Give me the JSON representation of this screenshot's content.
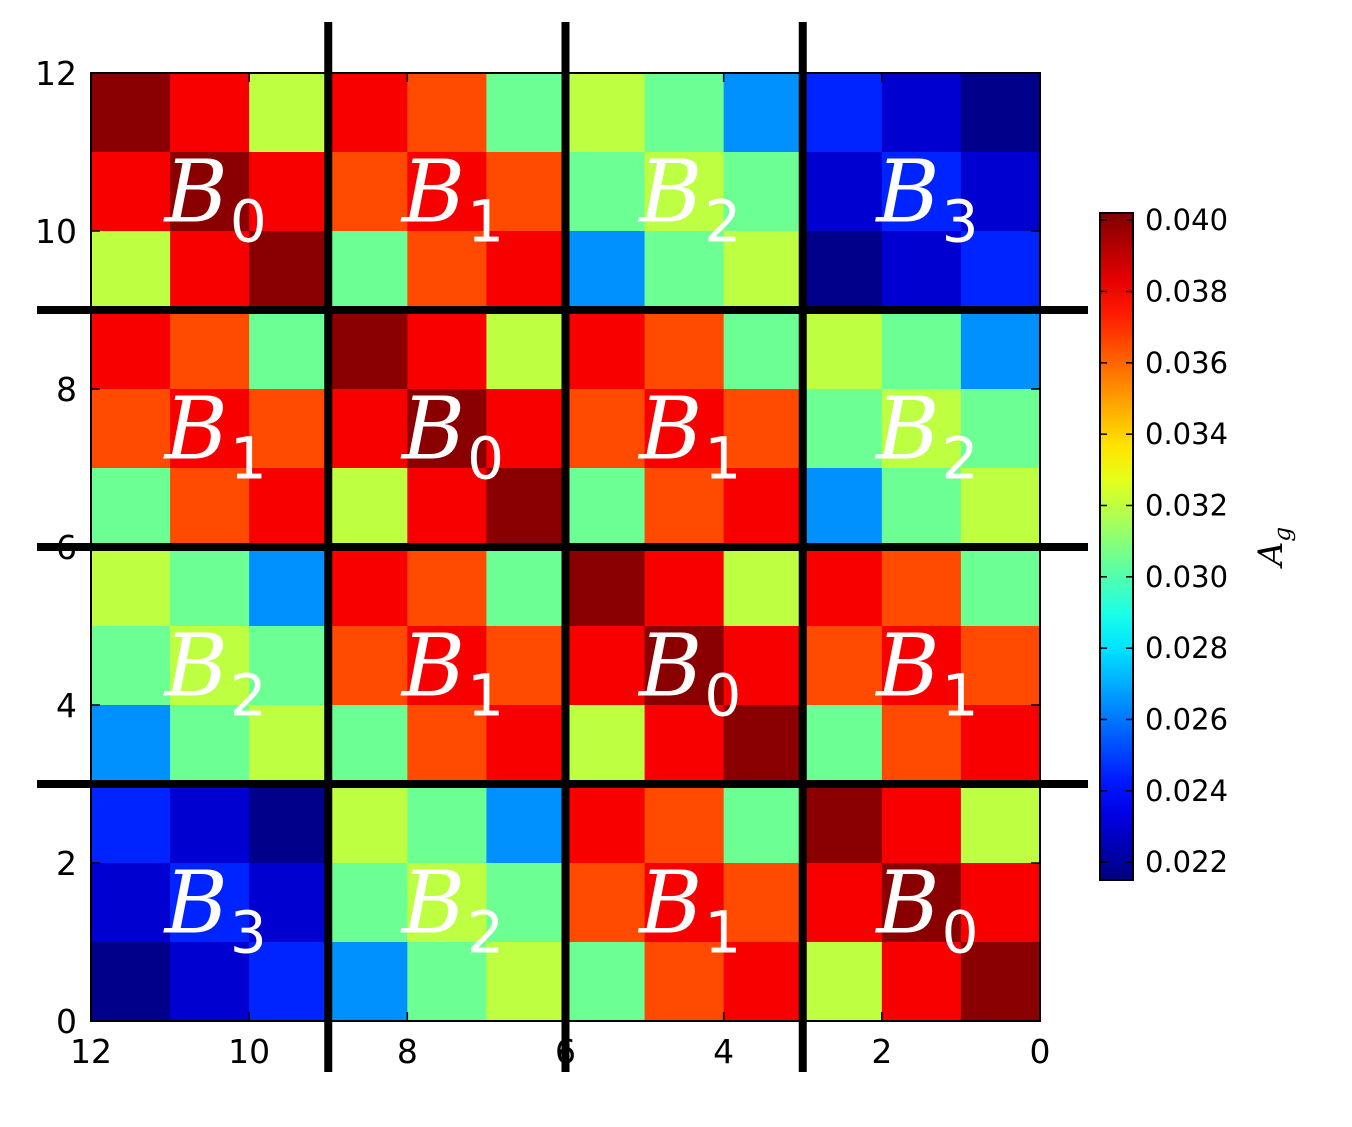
{
  "chart_data": {
    "type": "heatmap",
    "title": "",
    "xlabel": "",
    "ylabel": "",
    "xlim": [
      12,
      0
    ],
    "ylim": [
      0,
      12
    ],
    "x_ticks": [
      "12",
      "10",
      "8",
      "6",
      "4",
      "2",
      "0"
    ],
    "y_ticks": [
      "0",
      "2",
      "4",
      "6",
      "8",
      "10",
      "12"
    ],
    "colormap": "jet",
    "colorbar": {
      "label_main": "A",
      "label_sub": "g",
      "range": [
        0.0215,
        0.0402
      ],
      "ticks": [
        "0.022",
        "0.024",
        "0.026",
        "0.028",
        "0.030",
        "0.032",
        "0.034",
        "0.036",
        "0.038",
        "0.040"
      ]
    },
    "cell_values_top_to_bottom": [
      [
        0.04,
        0.038,
        0.032,
        0.038,
        0.0365,
        0.0305,
        0.032,
        0.0305,
        0.0265,
        0.0245,
        0.023,
        0.0217
      ],
      [
        0.038,
        0.04,
        0.038,
        0.0365,
        0.038,
        0.0365,
        0.0305,
        0.032,
        0.0305,
        0.023,
        0.0245,
        0.023
      ],
      [
        0.032,
        0.038,
        0.04,
        0.0305,
        0.0365,
        0.038,
        0.0265,
        0.0305,
        0.032,
        0.0217,
        0.023,
        0.0245
      ],
      [
        0.038,
        0.0365,
        0.0305,
        0.04,
        0.038,
        0.032,
        0.038,
        0.0365,
        0.0305,
        0.032,
        0.0305,
        0.0265
      ],
      [
        0.0365,
        0.038,
        0.0365,
        0.038,
        0.04,
        0.038,
        0.0365,
        0.038,
        0.0365,
        0.0305,
        0.032,
        0.0305
      ],
      [
        0.0305,
        0.0365,
        0.038,
        0.032,
        0.038,
        0.04,
        0.0305,
        0.0365,
        0.038,
        0.0265,
        0.0305,
        0.032
      ],
      [
        0.032,
        0.0305,
        0.0265,
        0.038,
        0.0365,
        0.0305,
        0.04,
        0.038,
        0.032,
        0.038,
        0.0365,
        0.0305
      ],
      [
        0.0305,
        0.032,
        0.0305,
        0.0365,
        0.038,
        0.0365,
        0.038,
        0.04,
        0.038,
        0.0365,
        0.038,
        0.0365
      ],
      [
        0.0265,
        0.0305,
        0.032,
        0.0305,
        0.0365,
        0.038,
        0.032,
        0.038,
        0.04,
        0.0305,
        0.0365,
        0.038
      ],
      [
        0.0245,
        0.023,
        0.0217,
        0.032,
        0.0305,
        0.0265,
        0.038,
        0.0365,
        0.0305,
        0.04,
        0.038,
        0.032
      ],
      [
        0.023,
        0.0245,
        0.023,
        0.0305,
        0.032,
        0.0305,
        0.0365,
        0.038,
        0.0365,
        0.038,
        0.04,
        0.038
      ],
      [
        0.0217,
        0.023,
        0.0245,
        0.0265,
        0.0305,
        0.032,
        0.0305,
        0.0365,
        0.038,
        0.032,
        0.038,
        0.04
      ]
    ],
    "block_labels_top_to_bottom": [
      [
        "0",
        "1",
        "2",
        "3"
      ],
      [
        "1",
        "0",
        "1",
        "2"
      ],
      [
        "2",
        "1",
        "0",
        "1"
      ],
      [
        "3",
        "2",
        "1",
        "0"
      ]
    ],
    "block_label_letter": "B",
    "block_dividers": [
      3,
      6,
      9
    ],
    "grid": false
  }
}
